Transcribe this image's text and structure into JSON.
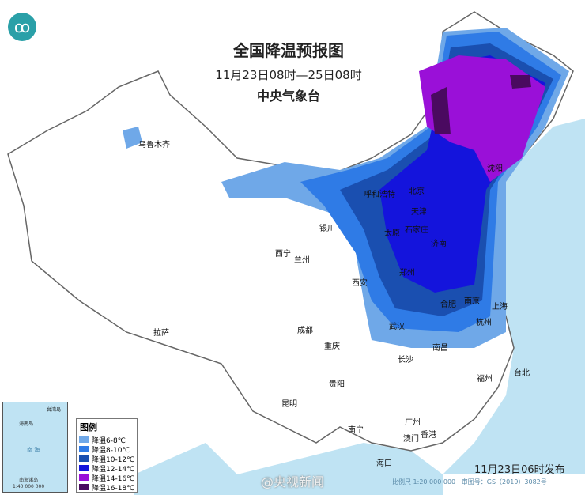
{
  "title": "全国降温预报图",
  "subtitle": "11月23日08时—25日08时",
  "organization": "中央气象台",
  "publish_time": "11月23日06时发布",
  "scale": "比例尺 1:20 000 000",
  "review_no": "审图号：GS（2019）3082号",
  "watermark": "@央视新闻",
  "inset": {
    "caption": "南海诸岛",
    "scale": "1:40 000 000",
    "labels": [
      "台湾岛",
      "海南岛",
      "南 海"
    ]
  },
  "legend": {
    "title": "图例",
    "items": [
      {
        "label": "降温6-8℃",
        "color": "#6fa8e8"
      },
      {
        "label": "降温8-10℃",
        "color": "#2f7be6"
      },
      {
        "label": "降温10-12℃",
        "color": "#1a4fb0"
      },
      {
        "label": "降温12-14℃",
        "color": "#1414dc"
      },
      {
        "label": "降温14-16℃",
        "color": "#9a10d8"
      },
      {
        "label": "降温16-18℃",
        "color": "#4a0a60"
      }
    ]
  },
  "cities": [
    "乌鲁木齐",
    "拉萨",
    "西宁",
    "兰州",
    "银川",
    "呼和浩特",
    "北京",
    "天津",
    "石家庄",
    "太原",
    "济南",
    "郑州",
    "西安",
    "成都",
    "重庆",
    "武汉",
    "合肥",
    "南京",
    "上海",
    "杭州",
    "南昌",
    "长沙",
    "贵阳",
    "昆明",
    "南宁",
    "广州",
    "澳门",
    "香港",
    "福州",
    "台北",
    "海口",
    "沈阳"
  ],
  "colors": {
    "sea": "#bfe3f3",
    "land": "#ffffff",
    "border": "#666666"
  }
}
